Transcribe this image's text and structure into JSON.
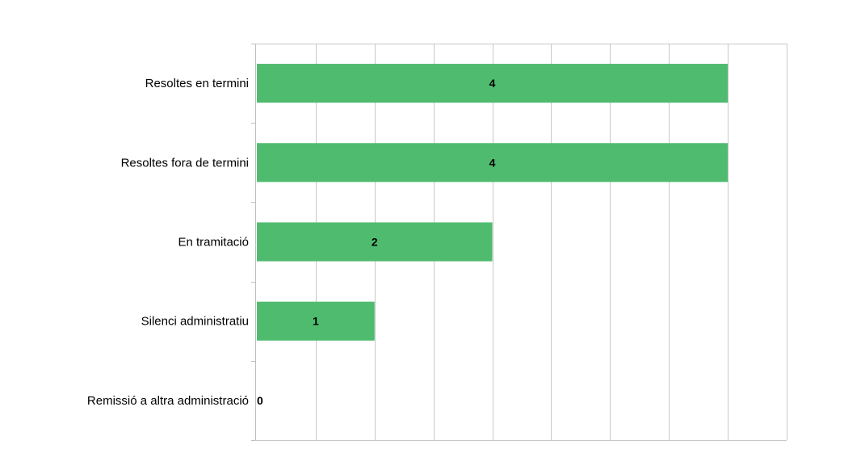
{
  "chart_data": {
    "type": "bar",
    "orientation": "horizontal",
    "categories": [
      "Resoltes en termini",
      "Resoltes fora de termini",
      "En tramitació",
      "Silenci administratiu",
      "Remissió a altra administració"
    ],
    "values": [
      4,
      4,
      2,
      1,
      0
    ],
    "data_labels": [
      "4",
      "4",
      "2",
      "1",
      "0"
    ],
    "xlim": [
      0,
      4.5
    ],
    "grid": true,
    "title": "",
    "xlabel": "",
    "ylabel": "",
    "colors": {
      "bar": "#4fbb6f",
      "grid": "#c8c8c8",
      "axis": "#bfbfbf",
      "text": "#000000"
    }
  }
}
